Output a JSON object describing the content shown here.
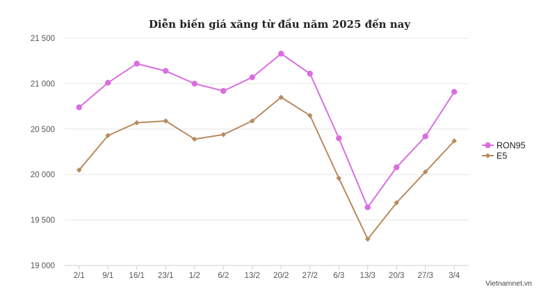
{
  "chart_data": {
    "type": "line",
    "title": "Diễn biến giá xăng từ đầu năm 2025 đến nay",
    "categories": [
      "2/1",
      "9/1",
      "16/1",
      "23/1",
      "1/2",
      "6/2",
      "13/2",
      "20/2",
      "27/2",
      "6/3",
      "13/3",
      "20/3",
      "27/3",
      "3/4"
    ],
    "series": [
      {
        "name": "RON95",
        "color": "#d96ee0",
        "marker": "circle",
        "values": [
          20740,
          21010,
          21220,
          21140,
          21000,
          20920,
          21070,
          21330,
          21110,
          20400,
          19640,
          20080,
          20420,
          20910
        ]
      },
      {
        "name": "E5",
        "color": "#b88a5e",
        "marker": "diamond",
        "values": [
          20050,
          20430,
          20570,
          20590,
          20390,
          20440,
          20590,
          20850,
          20650,
          19960,
          19290,
          19690,
          20030,
          20370
        ]
      }
    ],
    "yticks": [
      "19 000",
      "19 500",
      "20 000",
      "20 500",
      "21 000",
      "21 500"
    ],
    "ylim": [
      19000,
      21500
    ],
    "grid": true,
    "legend": "right"
  },
  "source": "Vietnamnet.vn"
}
